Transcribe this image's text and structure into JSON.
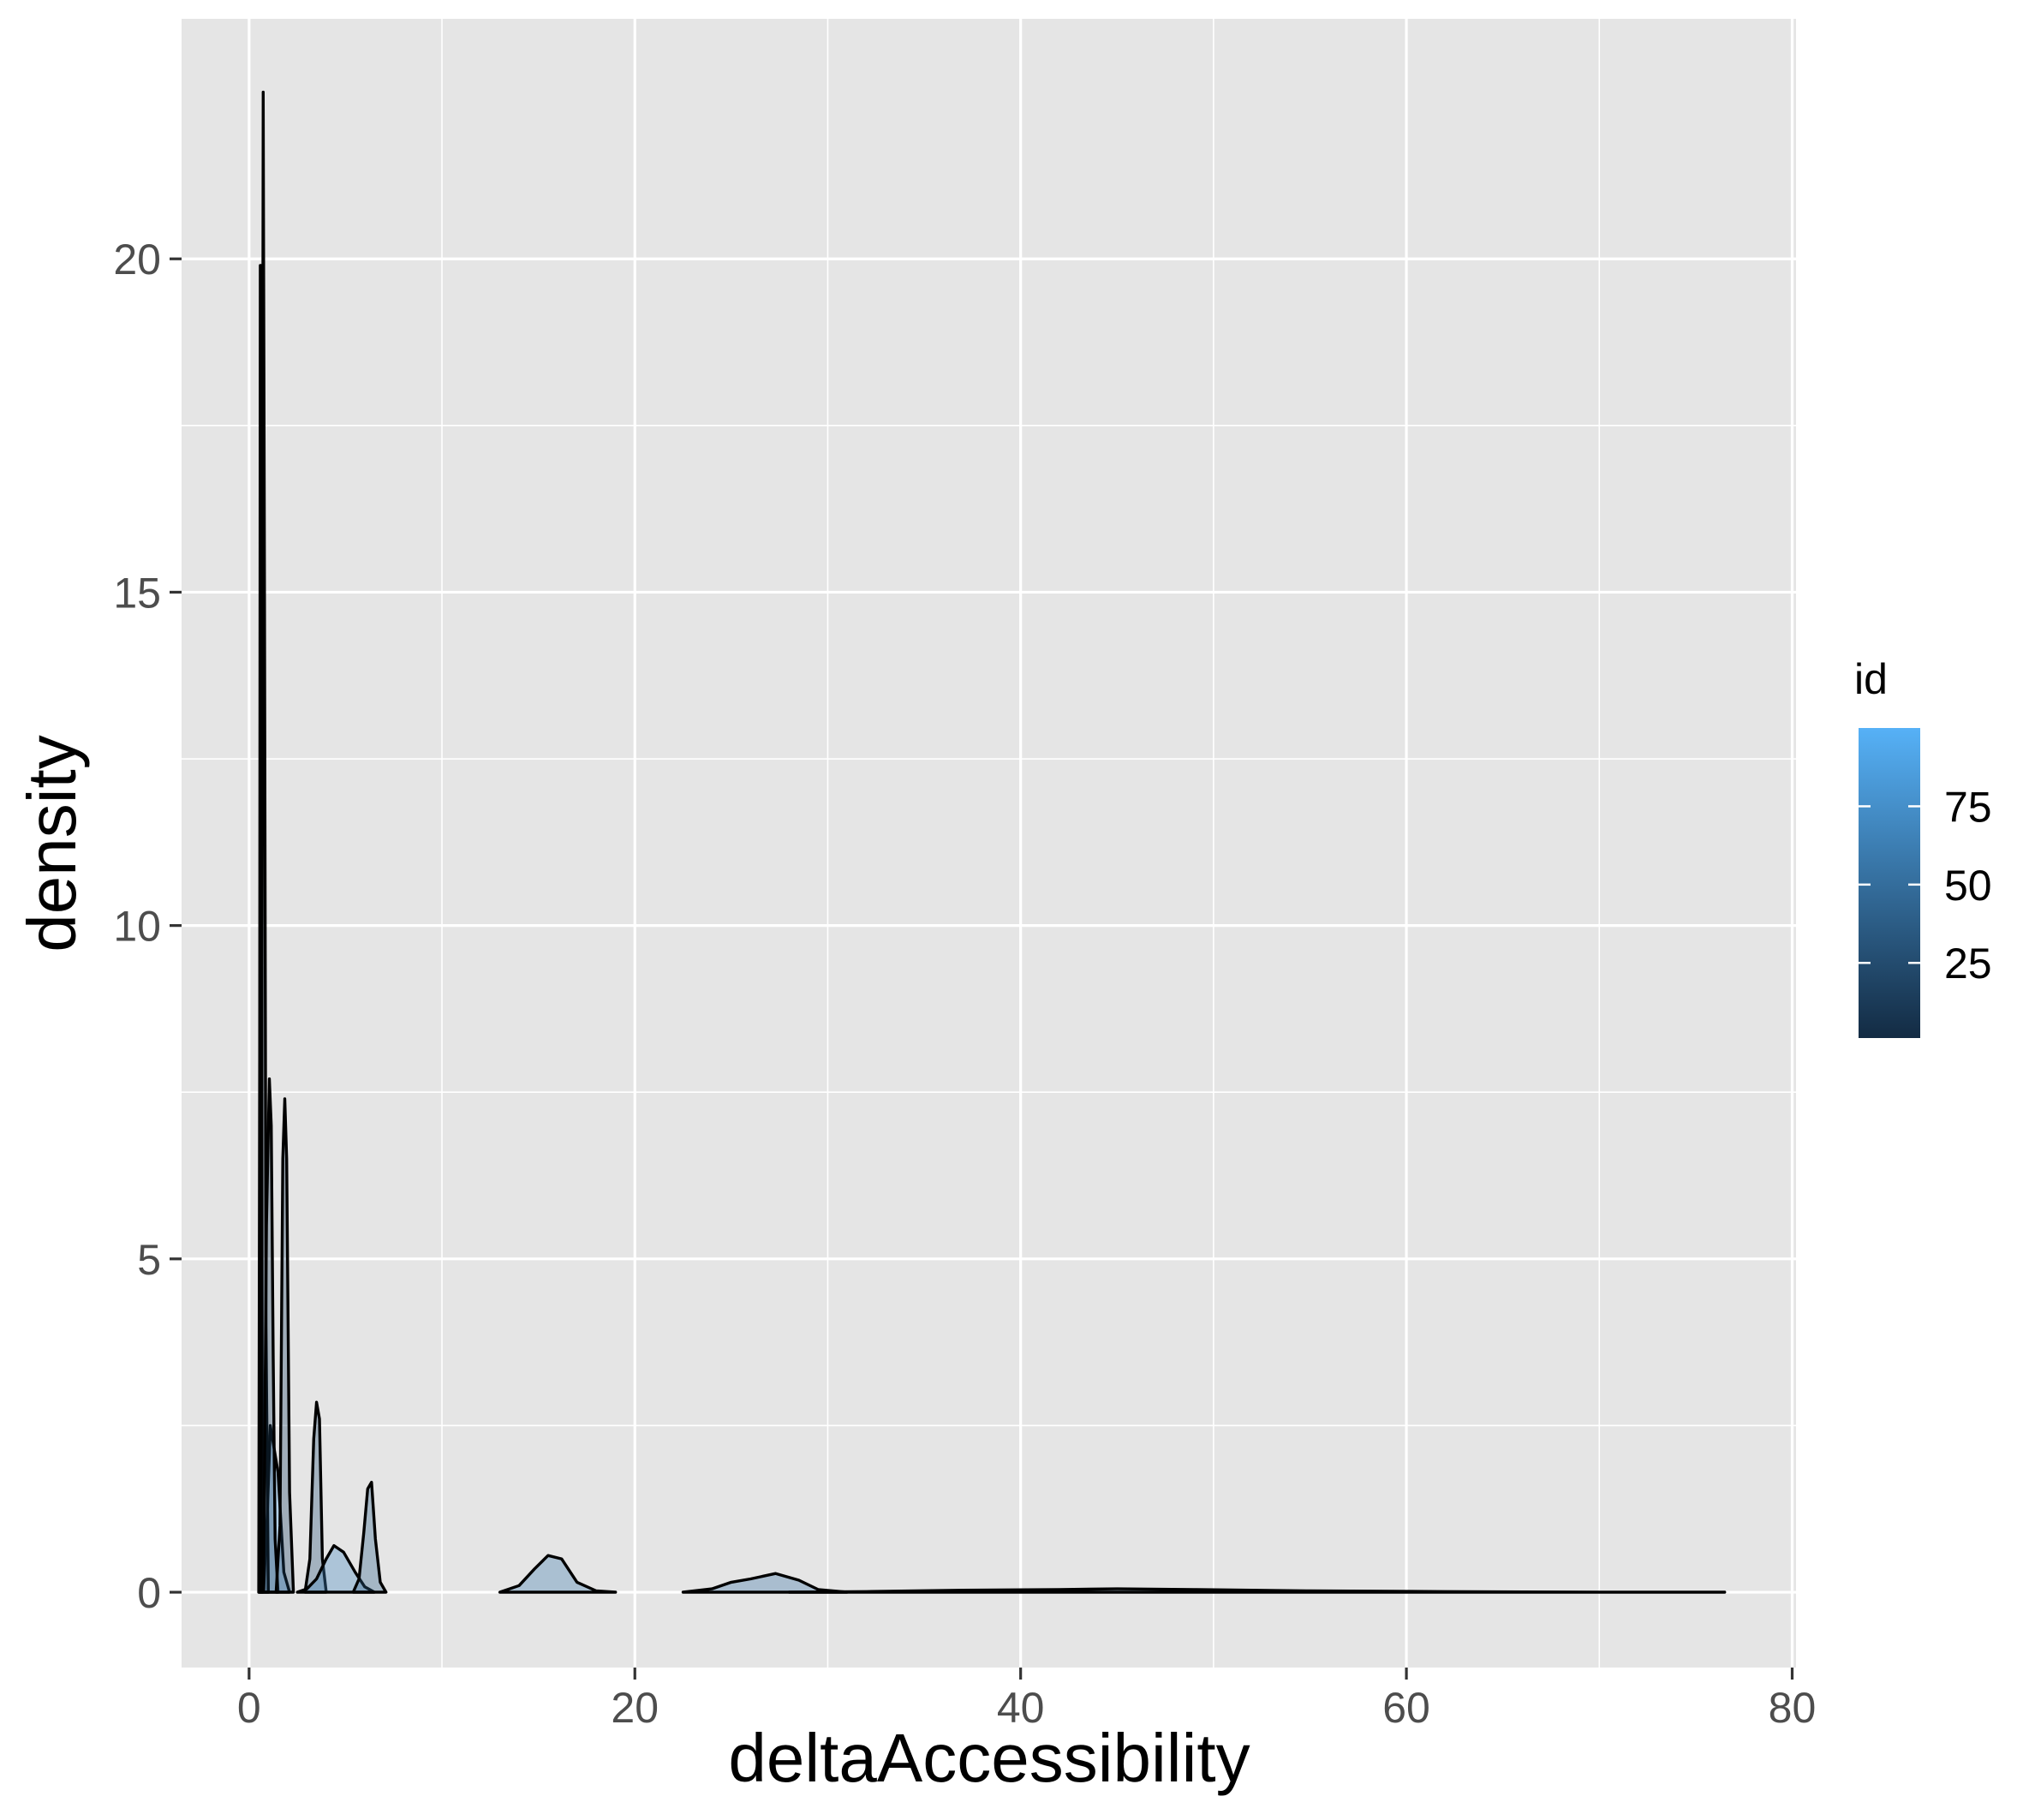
{
  "chart_data": {
    "type": "area",
    "subtype": "density",
    "title": "",
    "xlabel": "deltaAccessibility",
    "ylabel": "density",
    "xlim": [
      -3.5,
      80.2
    ],
    "ylim": [
      -1.13,
      23.6
    ],
    "x_ticks": [
      0,
      20,
      40,
      60,
      80
    ],
    "y_ticks": [
      0,
      5,
      10,
      15,
      20
    ],
    "x_tick_labels": [
      "0",
      "20",
      "40",
      "60",
      "80"
    ],
    "y_tick_labels": [
      "0",
      "5",
      "10",
      "15",
      "20"
    ],
    "x_minor": [
      10,
      30,
      50,
      70
    ],
    "y_minor": [
      2.5,
      7.5,
      12.5,
      17.5
    ],
    "grid": true,
    "background": "#e5e5e5",
    "grid_color": "#ffffff",
    "outline_color": "#000000",
    "fill_opacity": 0.35,
    "legend": {
      "title": "id",
      "type": "colorbar",
      "position": "right",
      "ticks": [
        25,
        50,
        75
      ],
      "tick_labels": [
        "25",
        "50",
        "75"
      ],
      "range": [
        1,
        100
      ],
      "color_low": "#132b43",
      "color_high": "#56b1f7"
    },
    "series": [
      {
        "id": 95,
        "x": [
          0.55,
          0.75,
          0.95,
          1.1,
          1.5,
          1.8,
          2.1
        ],
        "y": [
          0,
          0,
          1.2,
          2.5,
          1.8,
          0.3,
          0
        ]
      },
      {
        "id": 10,
        "x": [
          0.5,
          0.55,
          0.58,
          0.62,
          0.66,
          0.7
        ],
        "y": [
          0,
          8,
          19.9,
          19.9,
          7,
          0
        ]
      },
      {
        "id": 5,
        "x": [
          0.5,
          0.62,
          0.68,
          0.73,
          0.8,
          0.88,
          1.0
        ],
        "y": [
          0,
          0,
          12,
          22.5,
          15,
          4,
          0
        ]
      },
      {
        "id": 15,
        "x": [
          0.6,
          0.75,
          0.9,
          1.05,
          1.15,
          1.25,
          1.35,
          1.5
        ],
        "y": [
          0,
          0,
          5.5,
          7.7,
          7.0,
          3.5,
          0.8,
          0
        ]
      },
      {
        "id": 20,
        "x": [
          1.4,
          1.6,
          1.75,
          1.85,
          1.95,
          2.1,
          2.3
        ],
        "y": [
          0,
          1.0,
          6.5,
          7.4,
          6.5,
          1.5,
          0
        ]
      },
      {
        "id": 30,
        "x": [
          2.9,
          3.15,
          3.35,
          3.5,
          3.65,
          3.8,
          4.0
        ],
        "y": [
          0,
          0.5,
          2.3,
          2.85,
          2.6,
          0.5,
          0
        ]
      },
      {
        "id": 70,
        "x": [
          2.5,
          3.0,
          3.5,
          4.0,
          4.4,
          4.9,
          5.5,
          6.0,
          6.5
        ],
        "y": [
          0,
          0.05,
          0.2,
          0.5,
          0.7,
          0.6,
          0.3,
          0.08,
          0
        ]
      },
      {
        "id": 40,
        "x": [
          5.4,
          5.7,
          5.95,
          6.15,
          6.35,
          6.55,
          6.8,
          7.1
        ],
        "y": [
          0,
          0.2,
          0.9,
          1.55,
          1.65,
          0.8,
          0.15,
          0
        ]
      },
      {
        "id": 60,
        "x": [
          13.0,
          14.0,
          14.8,
          15.5,
          16.2,
          17.0,
          18.0,
          19.0
        ],
        "y": [
          0,
          0.1,
          0.35,
          0.55,
          0.5,
          0.15,
          0.02,
          0
        ]
      },
      {
        "id": 55,
        "x": [
          22.5,
          24.0,
          25.0,
          26.0,
          27.3,
          28.5,
          29.5,
          31.0
        ],
        "y": [
          0,
          0.05,
          0.15,
          0.2,
          0.28,
          0.18,
          0.04,
          0
        ]
      },
      {
        "id": 40,
        "x": [
          28.0,
          32.0,
          37.0,
          42.0,
          45.0,
          49.0,
          55.0,
          62.0,
          70.0,
          76.5
        ],
        "y": [
          0,
          0.01,
          0.03,
          0.04,
          0.05,
          0.04,
          0.02,
          0.01,
          0,
          0
        ]
      }
    ]
  }
}
